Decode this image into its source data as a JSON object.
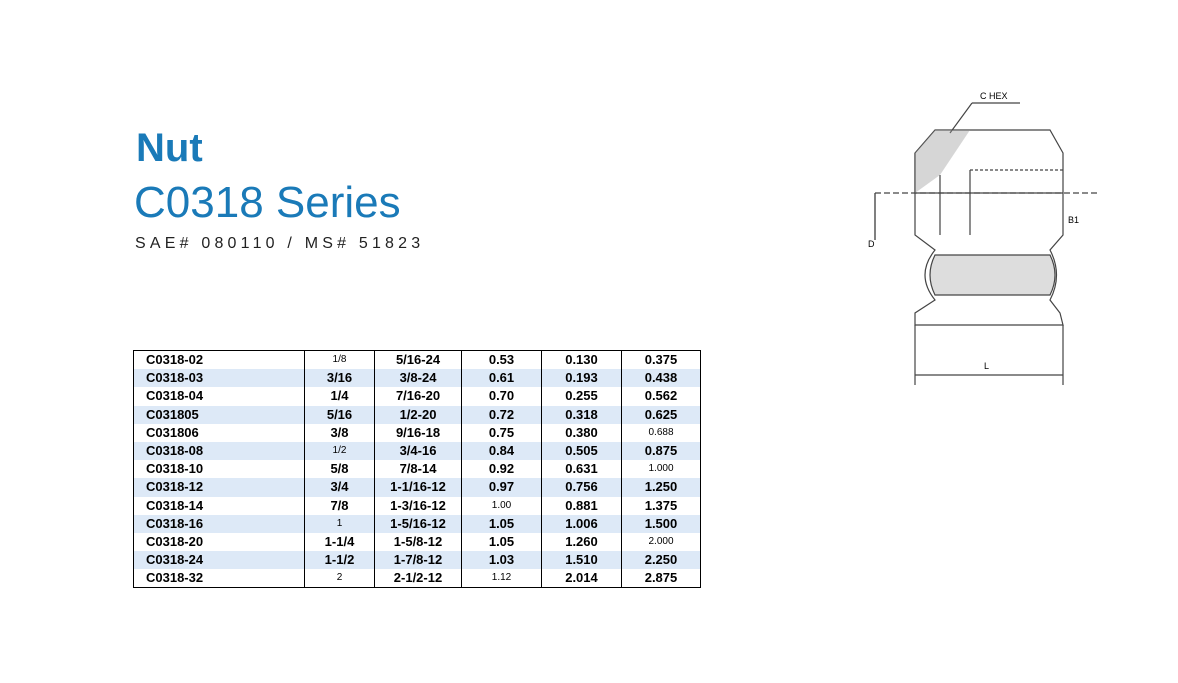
{
  "header": {
    "title": "Nut",
    "series": "C0318 Series",
    "subtitle": "SAE# 080110 / MS# 51823"
  },
  "table": {
    "rows": [
      [
        "C0318-02",
        "1/8",
        "5/16-24",
        "0.53",
        "0.130",
        "0.375"
      ],
      [
        "C0318-03",
        "3/16",
        "3/8-24",
        "0.61",
        "0.193",
        "0.438"
      ],
      [
        "C0318-04",
        "1/4",
        "7/16-20",
        "0.70",
        "0.255",
        "0.562"
      ],
      [
        "C031805",
        "5/16",
        "1/2-20",
        "0.72",
        "0.318",
        "0.625"
      ],
      [
        "C031806",
        "3/8",
        "9/16-18",
        "0.75",
        "0.380",
        "0.688"
      ],
      [
        "C0318-08",
        "1/2",
        "3/4-16",
        "0.84",
        "0.505",
        "0.875"
      ],
      [
        "C0318-10",
        "5/8",
        "7/8-14",
        "0.92",
        "0.631",
        "1.000"
      ],
      [
        "C0318-12",
        "3/4",
        "1-1/16-12",
        "0.97",
        "0.756",
        "1.250"
      ],
      [
        "C0318-14",
        "7/8",
        "1-3/16-12",
        "1.00",
        "0.881",
        "1.375"
      ],
      [
        "C0318-16",
        "1",
        "1-5/16-12",
        "1.05",
        "1.006",
        "1.500"
      ],
      [
        "C0318-20",
        "1-1/4",
        "1-5/8-12",
        "1.05",
        "1.260",
        "2.000"
      ],
      [
        "C0318-24",
        "1-1/2",
        "1-7/8-12",
        "1.03",
        "1.510",
        "2.250"
      ],
      [
        "C0318-32",
        "2",
        "2-1/2-12",
        "1.12",
        "2.014",
        "2.875"
      ]
    ]
  },
  "diagram": {
    "labels": [
      "C HEX",
      "B1",
      "D",
      "L"
    ]
  }
}
